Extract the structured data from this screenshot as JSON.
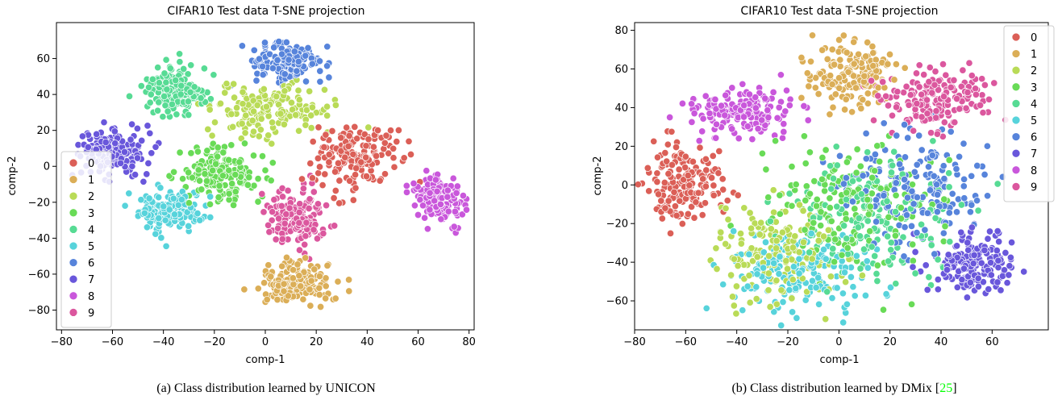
{
  "chart_data": [
    {
      "type": "scatter",
      "title": "CIFAR10 Test data T-SNE projection",
      "xlabel": "comp-1",
      "ylabel": "comp-2",
      "xlim": [
        -82,
        82
      ],
      "ylim": [
        -91,
        80
      ],
      "xticks": [
        "−80",
        "−60",
        "−40",
        "−20",
        "0",
        "20",
        "40",
        "60",
        "80"
      ],
      "yticks": [
        "−80",
        "−60",
        "−40",
        "−20",
        "0",
        "20",
        "40",
        "60"
      ],
      "legend": {
        "position": "center-left",
        "labels": [
          "0",
          "1",
          "2",
          "3",
          "4",
          "5",
          "6",
          "7",
          "8",
          "9"
        ]
      },
      "clusters": [
        {
          "cls": 0,
          "cx": 35,
          "cy": 5,
          "sx": 11,
          "sy": 12
        },
        {
          "cls": 1,
          "cx": 12,
          "cy": -65,
          "sx": 9,
          "sy": 8
        },
        {
          "cls": 2,
          "cx": 3,
          "cy": 32,
          "sx": 16,
          "sy": 10
        },
        {
          "cls": 3,
          "cx": -18,
          "cy": -5,
          "sx": 11,
          "sy": 10
        },
        {
          "cls": 4,
          "cx": -34,
          "cy": 42,
          "sx": 9,
          "sy": 9
        },
        {
          "cls": 5,
          "cx": -38,
          "cy": -25,
          "sx": 8,
          "sy": 8
        },
        {
          "cls": 6,
          "cx": 8,
          "cy": 58,
          "sx": 10,
          "sy": 7
        },
        {
          "cls": 7,
          "cx": -60,
          "cy": 8,
          "sx": 9,
          "sy": 8
        },
        {
          "cls": 8,
          "cx": 68,
          "cy": -18,
          "sx": 7,
          "sy": 8
        },
        {
          "cls": 9,
          "cx": 12,
          "cy": -28,
          "sx": 8,
          "sy": 10
        }
      ],
      "caption": "(a) Class distribution learned by UNICON"
    },
    {
      "type": "scatter",
      "title": "CIFAR10 Test data T-SNE projection",
      "xlabel": "comp-1",
      "ylabel": "comp-2",
      "xlim": [
        -80,
        82
      ],
      "ylim": [
        -75,
        84
      ],
      "xticks": [
        "−80",
        "−60",
        "−40",
        "−20",
        "0",
        "20",
        "40",
        "60"
      ],
      "yticks": [
        "−60",
        "−40",
        "−20",
        "0",
        "20",
        "40",
        "60",
        "80"
      ],
      "legend": {
        "position": "top-right",
        "labels": [
          "0",
          "1",
          "2",
          "3",
          "4",
          "5",
          "6",
          "7",
          "8",
          "9"
        ]
      },
      "clusters": [
        {
          "cls": 0,
          "cx": -60,
          "cy": 0,
          "sx": 10,
          "sy": 14
        },
        {
          "cls": 1,
          "cx": 5,
          "cy": 58,
          "sx": 12,
          "sy": 11
        },
        {
          "cls": 2,
          "cx": -25,
          "cy": -35,
          "sx": 16,
          "sy": 18
        },
        {
          "cls": 3,
          "cx": 5,
          "cy": -10,
          "sx": 22,
          "sy": 22
        },
        {
          "cls": 4,
          "cx": 15,
          "cy": -20,
          "sx": 20,
          "sy": 20
        },
        {
          "cls": 5,
          "cx": -15,
          "cy": -45,
          "sx": 18,
          "sy": 14
        },
        {
          "cls": 6,
          "cx": 30,
          "cy": 0,
          "sx": 18,
          "sy": 18
        },
        {
          "cls": 7,
          "cx": 52,
          "cy": -40,
          "sx": 10,
          "sy": 10
        },
        {
          "cls": 8,
          "cx": -38,
          "cy": 38,
          "sx": 14,
          "sy": 8
        },
        {
          "cls": 9,
          "cx": 38,
          "cy": 45,
          "sx": 13,
          "sy": 10
        }
      ],
      "caption_main": "(b) Class distribution learned by DMix [",
      "caption_ref": "25",
      "caption_close": "]"
    }
  ],
  "palette": [
    "#db5f57",
    "#dbae57",
    "#b9db57",
    "#69db57",
    "#57db94",
    "#57d3db",
    "#5784db",
    "#6957db",
    "#c957db",
    "#db579e"
  ],
  "ref_color": "#00ff00"
}
